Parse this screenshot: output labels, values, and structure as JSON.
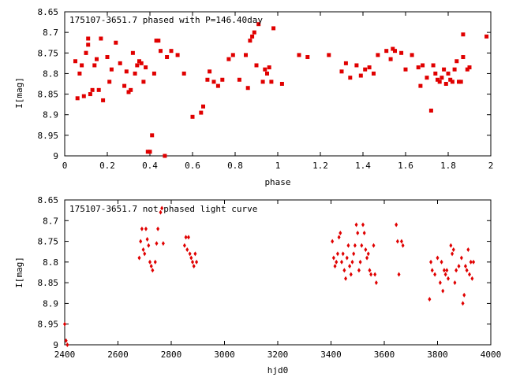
{
  "chart_data": [
    {
      "type": "scatter",
      "title": "175107-3651.7 phased with P=146.40day",
      "xlabel": "phase",
      "ylabel": "I[mag]",
      "xlim": [
        0,
        2
      ],
      "ylim": [
        9,
        8.65
      ],
      "y_inverted": true,
      "grid": false,
      "xticks": [
        "0",
        "0.2",
        "0.4",
        "0.6",
        "0.8",
        "1",
        "1.2",
        "1.4",
        "1.6",
        "1.8",
        "2"
      ],
      "yticks": [
        "8.65",
        "8.7",
        "8.75",
        "8.8",
        "8.85",
        "8.9",
        "8.95",
        "9"
      ],
      "marker_color": "#e00000",
      "marker": "square",
      "series": [
        {
          "x": [
            0.05,
            0.06,
            0.07,
            0.08,
            0.09,
            0.1,
            0.1,
            0.11,
            0.11,
            0.12,
            0.13,
            0.14,
            0.15,
            0.16,
            0.17,
            0.18,
            0.2,
            0.21,
            0.22,
            0.24,
            0.26,
            0.28,
            0.29,
            0.3,
            0.31,
            0.32,
            0.33,
            0.34,
            0.35,
            0.36,
            0.37,
            0.38,
            0.39,
            0.4,
            0.41,
            0.42,
            0.43,
            0.44,
            0.45,
            0.47,
            0.48,
            0.5,
            0.53,
            0.56,
            0.6,
            0.64,
            0.65,
            0.67,
            0.68,
            0.7,
            0.72,
            0.74,
            0.77,
            0.79,
            0.82,
            0.85,
            0.86,
            0.87,
            0.88,
            0.89,
            0.9,
            0.91,
            0.93,
            0.94,
            0.95,
            0.96,
            0.97,
            0.98,
            1.02,
            1.1,
            1.14,
            1.24,
            1.3,
            1.32,
            1.34,
            1.37,
            1.39,
            1.41,
            1.43,
            1.45,
            1.47,
            1.51,
            1.53,
            1.54,
            1.55,
            1.58,
            1.6,
            1.63,
            1.66,
            1.67,
            1.68,
            1.7,
            1.72,
            1.73,
            1.74,
            1.75,
            1.76,
            1.77,
            1.78,
            1.79,
            1.8,
            1.81,
            1.82,
            1.83,
            1.84,
            1.85,
            1.86,
            1.87,
            1.87,
            1.89,
            1.9,
            1.98
          ],
          "y": [
            8.77,
            8.86,
            8.8,
            8.78,
            8.855,
            8.75,
            8.75,
            8.715,
            8.73,
            8.85,
            8.84,
            8.78,
            8.765,
            8.84,
            8.715,
            8.865,
            8.76,
            8.82,
            8.79,
            8.725,
            8.775,
            8.83,
            8.795,
            8.845,
            8.84,
            8.75,
            8.8,
            8.78,
            8.77,
            8.775,
            8.82,
            8.785,
            8.99,
            8.99,
            8.95,
            8.8,
            8.72,
            8.72,
            8.745,
            9.0,
            8.76,
            8.745,
            8.755,
            8.8,
            8.905,
            8.895,
            8.88,
            8.815,
            8.795,
            8.82,
            8.83,
            8.815,
            8.765,
            8.755,
            8.815,
            8.755,
            8.835,
            8.72,
            8.71,
            8.7,
            8.78,
            8.68,
            8.82,
            8.79,
            8.8,
            8.785,
            8.82,
            8.69,
            8.825,
            8.755,
            8.76,
            8.755,
            8.795,
            8.775,
            8.81,
            8.78,
            8.805,
            8.79,
            8.785,
            8.8,
            8.755,
            8.745,
            8.765,
            8.74,
            8.745,
            8.75,
            8.79,
            8.755,
            8.785,
            8.83,
            8.78,
            8.81,
            8.89,
            8.78,
            8.8,
            8.815,
            8.82,
            8.81,
            8.79,
            8.825,
            8.8,
            8.815,
            8.82,
            8.79,
            8.77,
            8.82,
            8.82,
            8.76,
            8.705,
            8.79,
            8.785,
            8.71
          ]
        }
      ]
    },
    {
      "type": "scatter",
      "title": "175107-3651.7 not phased light curve",
      "xlabel": "hjd0",
      "ylabel": "I[mag]",
      "xlim": [
        2400,
        4000
      ],
      "ylim": [
        9,
        8.65
      ],
      "y_inverted": true,
      "grid": false,
      "xticks": [
        "2400",
        "2600",
        "2800",
        "3000",
        "3200",
        "3400",
        "3600",
        "3800",
        "4000"
      ],
      "yticks": [
        "8.65",
        "8.7",
        "8.75",
        "8.8",
        "8.85",
        "8.9",
        "8.95",
        "9"
      ],
      "marker_color": "#e00000",
      "marker": "diamond",
      "series": [
        {
          "x": [
            2400,
            2405,
            2410,
            2680,
            2685,
            2690,
            2695,
            2700,
            2705,
            2710,
            2715,
            2720,
            2725,
            2730,
            2740,
            2745,
            2750,
            2760,
            2765,
            2770,
            2850,
            2855,
            2860,
            2865,
            2870,
            2875,
            2880,
            2885,
            2890,
            2895,
            3405,
            3410,
            3415,
            3420,
            3425,
            3430,
            3435,
            3440,
            3445,
            3450,
            3455,
            3460,
            3465,
            3470,
            3475,
            3480,
            3485,
            3490,
            3495,
            3500,
            3505,
            3510,
            3515,
            3520,
            3525,
            3530,
            3535,
            3540,
            3545,
            3550,
            3560,
            3565,
            3570,
            3645,
            3650,
            3655,
            3665,
            3670,
            3770,
            3775,
            3780,
            3790,
            3800,
            3810,
            3815,
            3820,
            3825,
            3830,
            3835,
            3840,
            3850,
            3855,
            3860,
            3865,
            3870,
            3880,
            3890,
            3895,
            3900,
            3905,
            3910,
            3915,
            3920,
            3925,
            3930,
            3935
          ],
          "y": [
            8.95,
            8.99,
            9.0,
            8.79,
            8.75,
            8.72,
            8.77,
            8.78,
            8.72,
            8.745,
            8.76,
            8.8,
            8.81,
            8.82,
            8.8,
            8.755,
            8.72,
            8.68,
            8.67,
            8.755,
            8.76,
            8.74,
            8.77,
            8.74,
            8.78,
            8.79,
            8.8,
            8.81,
            8.78,
            8.8,
            8.75,
            8.79,
            8.81,
            8.8,
            8.78,
            8.74,
            8.73,
            8.8,
            8.78,
            8.82,
            8.84,
            8.79,
            8.76,
            8.81,
            8.83,
            8.8,
            8.78,
            8.76,
            8.71,
            8.73,
            8.82,
            8.8,
            8.76,
            8.71,
            8.73,
            8.77,
            8.79,
            8.78,
            8.82,
            8.83,
            8.76,
            8.83,
            8.85,
            8.71,
            8.75,
            8.83,
            8.75,
            8.76,
            8.89,
            8.8,
            8.82,
            8.83,
            8.79,
            8.85,
            8.8,
            8.87,
            8.82,
            8.83,
            8.82,
            8.84,
            8.76,
            8.78,
            8.77,
            8.85,
            8.82,
            8.81,
            8.79,
            8.9,
            8.88,
            8.81,
            8.82,
            8.77,
            8.83,
            8.8,
            8.84,
            8.8
          ]
        }
      ]
    }
  ]
}
